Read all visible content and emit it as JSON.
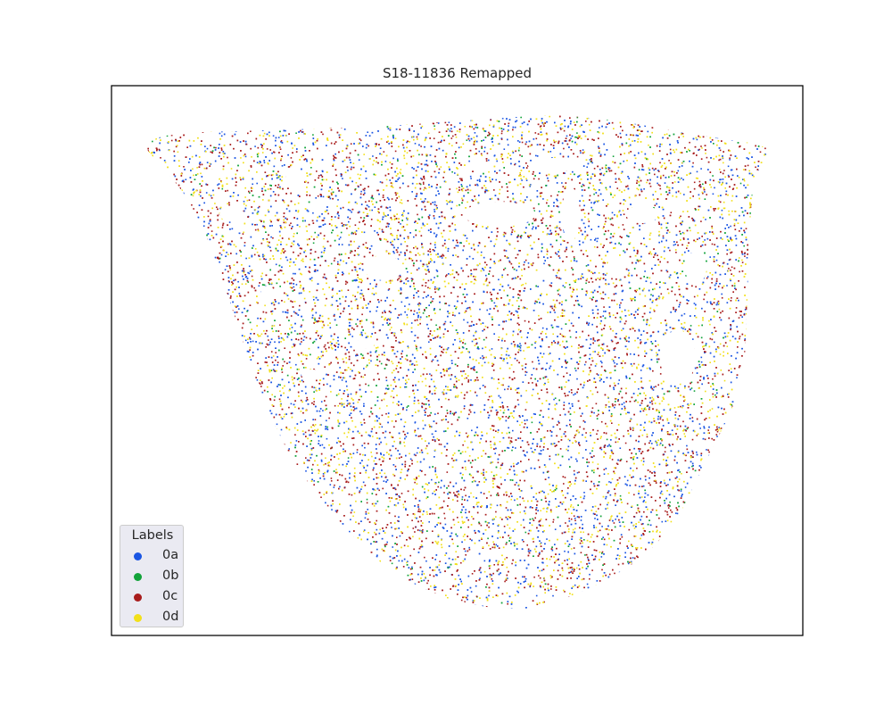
{
  "chart_data": {
    "type": "scatter",
    "title": "S18-11836 Remapped",
    "xlabel": "",
    "ylabel": "",
    "grid": false,
    "axis_ticks": false,
    "legend": {
      "title": "Labels",
      "placement": "lower-left",
      "entries": [
        {
          "label": "0a",
          "color": "#1a55e3"
        },
        {
          "label": "0b",
          "color": "#12a33a"
        },
        {
          "label": "0c",
          "color": "#a81c1c"
        },
        {
          "label": "0d",
          "color": "#f2e01a"
        }
      ]
    },
    "series": [
      {
        "name": "0a",
        "color": "#1a55e3"
      },
      {
        "name": "0b",
        "color": "#12a33a"
      },
      {
        "name": "0c",
        "color": "#a81c1c"
      },
      {
        "name": "0d",
        "color": "#f2e01a"
      }
    ]
  }
}
